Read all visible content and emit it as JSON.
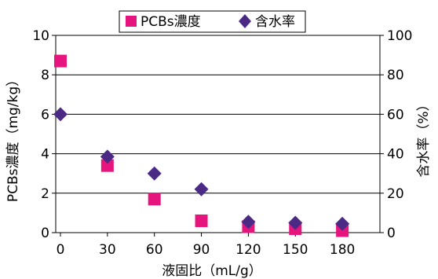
{
  "chart_data": {
    "type": "scatter",
    "x": [
      0,
      30,
      60,
      90,
      120,
      150,
      180
    ],
    "xlabel": "液固比（mL/g）",
    "ylabel": "PCBs濃度（mg/kg）",
    "y2label": "含水率（%）",
    "xlim": [
      -3,
      204
    ],
    "ylim": [
      0,
      10
    ],
    "y2lim": [
      0,
      100
    ],
    "x_ticks": [
      "0",
      "30",
      "60",
      "90",
      "120",
      "150",
      "180"
    ],
    "y_ticks": [
      "0",
      "2",
      "4",
      "6",
      "8",
      "10"
    ],
    "y2_ticks": [
      "0",
      "20",
      "40",
      "60",
      "80",
      "100"
    ],
    "grid": "horizontal",
    "legend_position": "top",
    "series": [
      {
        "name": "PCBs濃度",
        "axis": "left",
        "marker": "square",
        "color": "#e6157d",
        "values": [
          8.7,
          3.4,
          1.7,
          0.6,
          0.3,
          0.2,
          0.1
        ]
      },
      {
        "name": "含水率",
        "axis": "right",
        "marker": "diamond",
        "color": "#4b2a86",
        "values": [
          60,
          38.5,
          30,
          22,
          5.5,
          5,
          4.5
        ]
      }
    ]
  }
}
